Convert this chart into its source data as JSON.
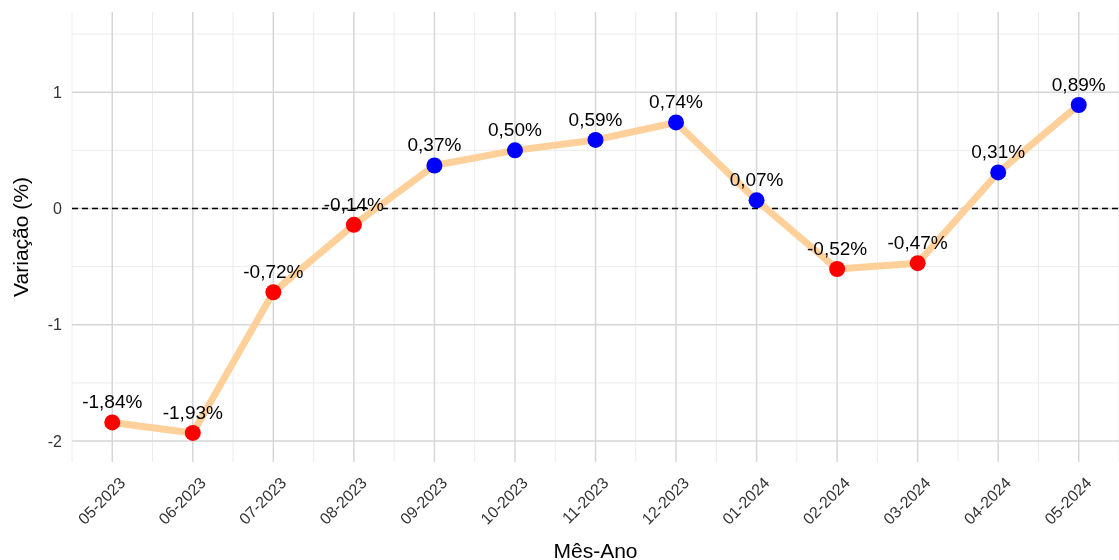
{
  "chart_data": {
    "type": "line",
    "xlabel": "Mês-Ano",
    "ylabel": "Variação (%)",
    "categories": [
      "05-2023",
      "06-2023",
      "07-2023",
      "08-2023",
      "09-2023",
      "10-2023",
      "11-2023",
      "12-2023",
      "01-2024",
      "02-2024",
      "03-2024",
      "04-2024",
      "05-2024"
    ],
    "series": [
      {
        "color": "#ffd09a",
        "colors": [
          "#ff0000",
          "#ff0000",
          "#ff0000",
          "#ff0000",
          "#0000ff",
          "#0000ff",
          "#0000ff",
          "#0000ff",
          "#0000ff",
          "#ff0000",
          "#ff0000",
          "#0000ff",
          "#0000ff"
        ],
        "values": [
          -1.84,
          -1.93,
          -0.72,
          -0.14,
          0.37,
          0.5,
          0.59,
          0.74,
          0.07,
          -0.52,
          -0.47,
          0.31,
          0.89
        ],
        "value_labels": [
          "-1,84%",
          "-1,93%",
          "-0,72%",
          "-0,14%",
          "0,37%",
          "0,50%",
          "0,59%",
          "0,74%",
          "0,07%",
          "-0,52%",
          "-0,47%",
          "0,31%",
          "0,89%"
        ]
      }
    ],
    "ylim": [
      -2.18,
      1.69
    ],
    "yticks": [
      -2,
      -1,
      0,
      1
    ],
    "grid": true,
    "marker": "circle",
    "ref_lines": [
      {
        "axis": "y",
        "value": 0,
        "line_style": "dashed",
        "color": "#000000"
      }
    ]
  }
}
